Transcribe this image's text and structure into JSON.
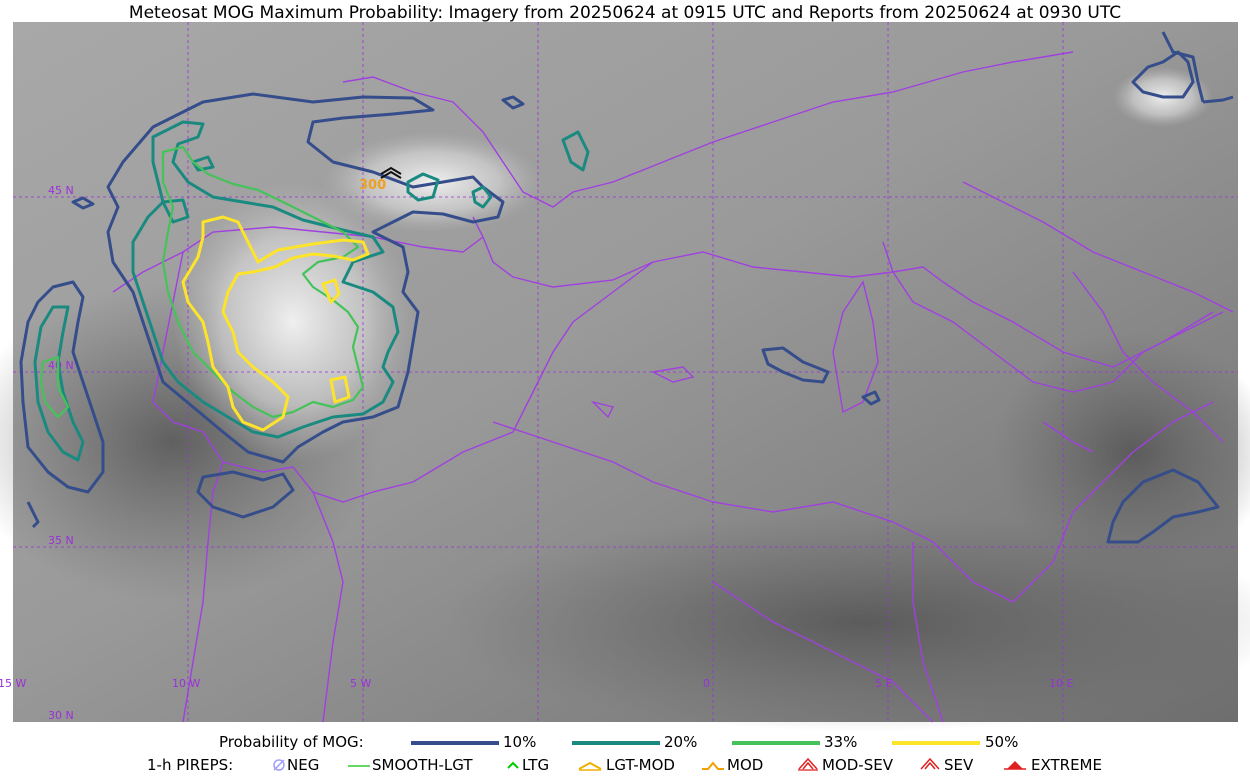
{
  "title": "Meteosat MOG Maximum Probability: Imagery from 20250624 at 0915 UTC and Reports from 20250624 at 0930 UTC",
  "map": {
    "lat_labels": [
      "45 N",
      "40 N",
      "35 N",
      "30 N"
    ],
    "lon_labels": [
      "15 W",
      "10 W",
      "5 W",
      "0",
      "5 E",
      "10 E"
    ],
    "report_label": "300",
    "colors": {
      "grid": "#9b30d9",
      "coastline": "#a040e0",
      "p10": "#354d8a",
      "p20": "#1a8a80",
      "p33": "#46c25a",
      "p50": "#fde42a",
      "report": "#f0a020"
    }
  },
  "legend": {
    "prob_title": "Probability of MOG:",
    "prob_items": [
      {
        "label": "10%",
        "color": "#354d8a"
      },
      {
        "label": "20%",
        "color": "#1a8a80"
      },
      {
        "label": "33%",
        "color": "#46c25a"
      },
      {
        "label": "50%",
        "color": "#fde42a"
      }
    ],
    "pirep_title": "1-h PIREPS:",
    "pirep_items": [
      {
        "label": "NEG",
        "icon": "neg-icon",
        "color": "#9f9fff"
      },
      {
        "label": "SMOOTH-LGT",
        "icon": "smooth-lgt-icon",
        "color": "#33cc33"
      },
      {
        "label": "LTG",
        "icon": "ltg-icon",
        "color": "#00cc00"
      },
      {
        "label": "LGT-MOD",
        "icon": "lgt-mod-icon",
        "color": "#f0b000"
      },
      {
        "label": "MOD",
        "icon": "mod-icon",
        "color": "#f0a000"
      },
      {
        "label": "MOD-SEV",
        "icon": "mod-sev-icon",
        "color": "#e02020"
      },
      {
        "label": "SEV",
        "icon": "sev-icon",
        "color": "#e02020"
      },
      {
        "label": "EXTREME",
        "icon": "extreme-icon",
        "color": "#e02020"
      }
    ]
  }
}
